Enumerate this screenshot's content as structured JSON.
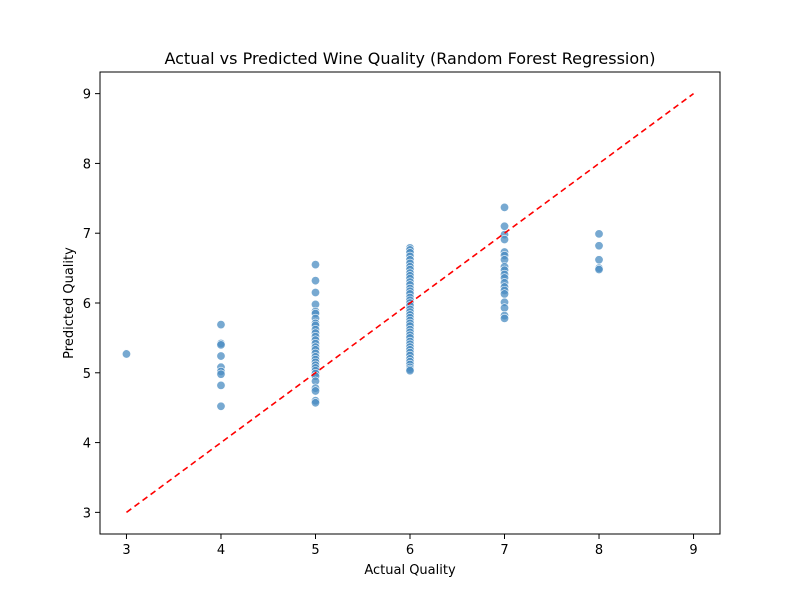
{
  "chart_data": {
    "type": "scatter",
    "title": "Actual vs Predicted Wine Quality (Random Forest Regression)",
    "xlabel": "Actual Quality",
    "ylabel": "Predicted Quality",
    "xlim": [
      2.72,
      9.28
    ],
    "ylim": [
      2.69,
      9.31
    ],
    "xticks": [
      3,
      4,
      5,
      6,
      7,
      8,
      9
    ],
    "yticks": [
      3,
      4,
      5,
      6,
      7,
      8,
      9
    ],
    "grid": false,
    "point_color": "#4a8cc2",
    "reference_line": {
      "style": "dashed",
      "color": "#ff0000",
      "x": [
        3,
        9
      ],
      "y": [
        3,
        9
      ]
    },
    "series": [
      {
        "points": [
          [
            3,
            5.27
          ],
          [
            4,
            5.69
          ],
          [
            4,
            5.42
          ],
          [
            4,
            5.4
          ],
          [
            4,
            5.24
          ],
          [
            4,
            5.08
          ],
          [
            4,
            5.02
          ],
          [
            4,
            4.98
          ],
          [
            4,
            4.82
          ],
          [
            4,
            4.52
          ],
          [
            5,
            6.55
          ],
          [
            5,
            6.32
          ],
          [
            5,
            6.15
          ],
          [
            5,
            5.98
          ],
          [
            5,
            5.88
          ],
          [
            5,
            5.85
          ],
          [
            5,
            5.78
          ],
          [
            5,
            5.71
          ],
          [
            5,
            5.68
          ],
          [
            5,
            5.62
          ],
          [
            5,
            5.57
          ],
          [
            5,
            5.52
          ],
          [
            5,
            5.47
          ],
          [
            5,
            5.42
          ],
          [
            5,
            5.37
          ],
          [
            5,
            5.33
          ],
          [
            5,
            5.28
          ],
          [
            5,
            5.23
          ],
          [
            5,
            5.19
          ],
          [
            5,
            5.15
          ],
          [
            5,
            5.11
          ],
          [
            5,
            5.07
          ],
          [
            5,
            5.03
          ],
          [
            5,
            4.99
          ],
          [
            5,
            4.95
          ],
          [
            5,
            4.88
          ],
          [
            5,
            4.78
          ],
          [
            5,
            4.74
          ],
          [
            5,
            4.6
          ],
          [
            5,
            4.57
          ],
          [
            6,
            6.79
          ],
          [
            6,
            6.76
          ],
          [
            6,
            6.72
          ],
          [
            6,
            6.67
          ],
          [
            6,
            6.62
          ],
          [
            6,
            6.57
          ],
          [
            6,
            6.52
          ],
          [
            6,
            6.48
          ],
          [
            6,
            6.43
          ],
          [
            6,
            6.39
          ],
          [
            6,
            6.35
          ],
          [
            6,
            6.3
          ],
          [
            6,
            6.26
          ],
          [
            6,
            6.21
          ],
          [
            6,
            6.17
          ],
          [
            6,
            6.13
          ],
          [
            6,
            6.08
          ],
          [
            6,
            6.04
          ],
          [
            6,
            6.0
          ],
          [
            6,
            5.96
          ],
          [
            6,
            5.91
          ],
          [
            6,
            5.87
          ],
          [
            6,
            5.83
          ],
          [
            6,
            5.79
          ],
          [
            6,
            5.75
          ],
          [
            6,
            5.71
          ],
          [
            6,
            5.67
          ],
          [
            6,
            5.62
          ],
          [
            6,
            5.58
          ],
          [
            6,
            5.54
          ],
          [
            6,
            5.5
          ],
          [
            6,
            5.45
          ],
          [
            6,
            5.41
          ],
          [
            6,
            5.37
          ],
          [
            6,
            5.33
          ],
          [
            6,
            5.29
          ],
          [
            6,
            5.25
          ],
          [
            6,
            5.2
          ],
          [
            6,
            5.16
          ],
          [
            6,
            5.12
          ],
          [
            6,
            5.08
          ],
          [
            6,
            5.05
          ],
          [
            6,
            5.03
          ],
          [
            7,
            7.37
          ],
          [
            7,
            7.1
          ],
          [
            7,
            6.98
          ],
          [
            7,
            6.91
          ],
          [
            7,
            6.73
          ],
          [
            7,
            6.68
          ],
          [
            7,
            6.62
          ],
          [
            7,
            6.52
          ],
          [
            7,
            6.47
          ],
          [
            7,
            6.41
          ],
          [
            7,
            6.36
          ],
          [
            7,
            6.29
          ],
          [
            7,
            6.23
          ],
          [
            7,
            6.18
          ],
          [
            7,
            6.13
          ],
          [
            7,
            6.01
          ],
          [
            7,
            5.93
          ],
          [
            7,
            5.82
          ],
          [
            7,
            5.78
          ],
          [
            8,
            6.99
          ],
          [
            8,
            6.82
          ],
          [
            8,
            6.62
          ],
          [
            8,
            6.5
          ],
          [
            8,
            6.48
          ]
        ]
      }
    ]
  }
}
